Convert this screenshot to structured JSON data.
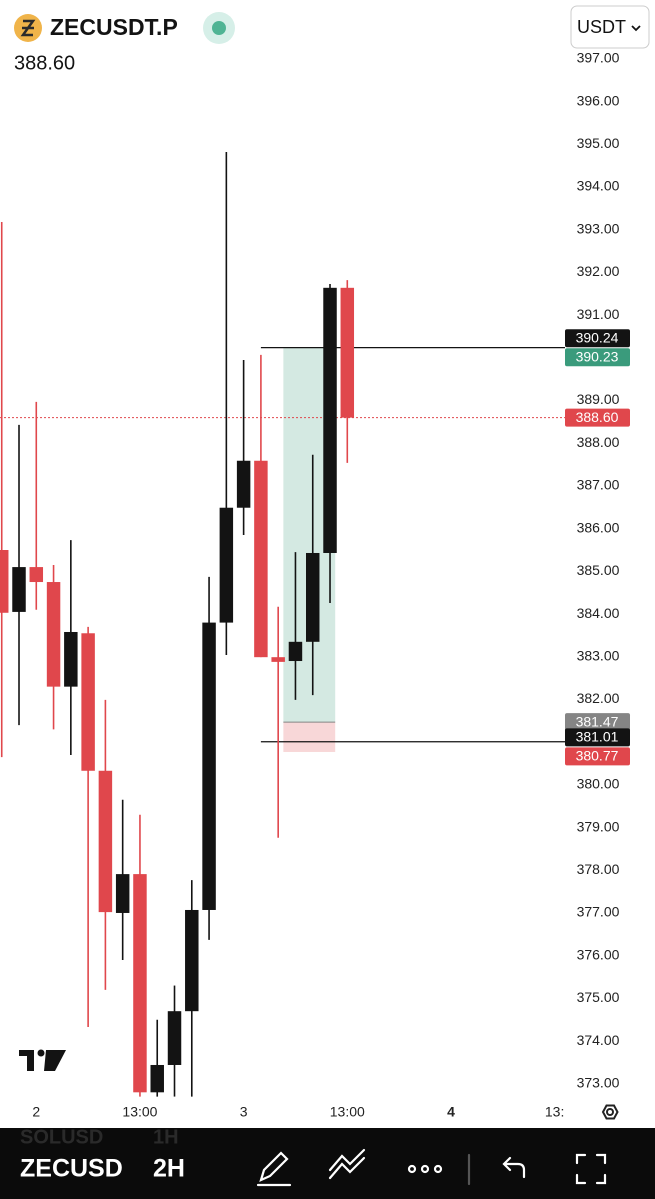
{
  "header": {
    "symbol": "ZECUSDT.P",
    "currency": "USDT"
  },
  "toolbar": {
    "symbol": "ZECUSD",
    "interval": "2H",
    "ghost_symbol": "SOLUSD",
    "ghost_interval": "1H"
  },
  "chart_data": {
    "type": "candlestick",
    "up_color": "#131313",
    "down_color": "#e0474c",
    "x": [
      0,
      1,
      2,
      3,
      4,
      5,
      6,
      7,
      8,
      9,
      10,
      11,
      12,
      13,
      14,
      15,
      16,
      17,
      18,
      19,
      20
    ],
    "open": [
      385.5,
      384.05,
      385.1,
      384.75,
      382.3,
      383.55,
      380.33,
      377.0,
      377.91,
      372.8,
      373.44,
      374.7,
      377.07,
      383.8,
      386.49,
      387.59,
      382.99,
      382.9,
      383.35,
      385.43,
      391.64
    ],
    "high": [
      393.18,
      388.43,
      388.97,
      385.15,
      385.73,
      383.7,
      381.99,
      379.65,
      379.3,
      374.5,
      375.3,
      377.77,
      384.87,
      394.82,
      389.95,
      390.07,
      384.17,
      385.45,
      387.73,
      391.73,
      391.82
    ],
    "low": [
      380.65,
      381.4,
      384.1,
      381.3,
      380.7,
      374.33,
      375.2,
      375.9,
      372.7,
      372.7,
      372.7,
      372.7,
      376.37,
      383.04,
      385.85,
      382.99,
      378.76,
      381.99,
      382.1,
      384.26,
      387.54
    ],
    "close": [
      384.03,
      385.1,
      384.75,
      382.3,
      383.58,
      380.33,
      377.02,
      377.91,
      372.8,
      373.44,
      374.7,
      377.07,
      383.8,
      386.49,
      387.59,
      382.99,
      382.88,
      383.35,
      385.43,
      391.64,
      388.6
    ],
    "xlim": [
      -0.1,
      32.6
    ],
    "xticks": [
      {
        "value": 2,
        "label": "2"
      },
      {
        "value": 8,
        "label": "13:00"
      },
      {
        "value": 14,
        "label": "3"
      },
      {
        "value": 20,
        "label": "13:00"
      },
      {
        "value": 26,
        "label": "4"
      },
      {
        "value": 32,
        "label": "13:"
      }
    ],
    "ylim": [
      372.62,
      398.38
    ],
    "yticks": [
      {
        "value": 373,
        "label": "373.00"
      },
      {
        "value": 374,
        "label": "374.00"
      },
      {
        "value": 375,
        "label": "375.00"
      },
      {
        "value": 376,
        "label": "376.00"
      },
      {
        "value": 377,
        "label": "377.00"
      },
      {
        "value": 378,
        "label": "378.00"
      },
      {
        "value": 379,
        "label": "379.00"
      },
      {
        "value": 380,
        "label": "380.00"
      },
      {
        "value": 381,
        "label": "381.00"
      },
      {
        "value": 382,
        "label": "382.00"
      },
      {
        "value": 383,
        "label": "383.00"
      },
      {
        "value": 384,
        "label": "384.00"
      },
      {
        "value": 385,
        "label": "385.00"
      },
      {
        "value": 386,
        "label": "386.00"
      },
      {
        "value": 387,
        "label": "387.00"
      },
      {
        "value": 388,
        "label": "388.00"
      },
      {
        "value": 389,
        "label": "389.00"
      },
      {
        "value": 390,
        "label": "390.00"
      },
      {
        "value": 391,
        "label": "391.00"
      },
      {
        "value": 392,
        "label": "392.00"
      },
      {
        "value": 393,
        "label": "393.00"
      },
      {
        "value": 394,
        "label": "394.00"
      },
      {
        "value": 395,
        "label": "395.00"
      },
      {
        "value": 396,
        "label": "396.00"
      },
      {
        "value": 397,
        "label": "397.00"
      }
    ],
    "last_price": {
      "value": 388.6,
      "label": "388.60",
      "color": "#e0474c"
    },
    "price_lines": [
      {
        "value": 390.24,
        "label": "390.24",
        "color": "#131313",
        "x_start": 15
      },
      {
        "value": 381.01,
        "label": "381.01",
        "color": "#131313",
        "x_start": 15
      }
    ],
    "position": {
      "x_range": [
        16.3,
        19.3
      ],
      "target": {
        "value": 390.23,
        "label": "390.23",
        "color": "#3a9b7c"
      },
      "entry": {
        "value": 381.47,
        "label": "381.47",
        "color": "#858585"
      },
      "stop": {
        "value": 380.77,
        "label": "380.77",
        "color": "#e0474c"
      }
    }
  }
}
